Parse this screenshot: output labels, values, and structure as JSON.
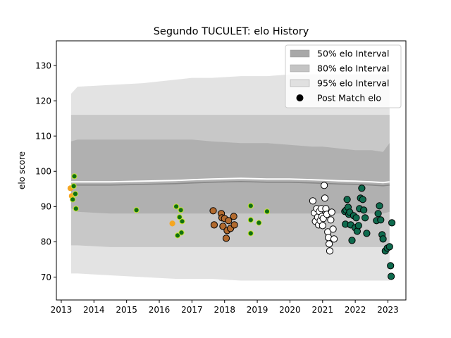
{
  "chart_data": {
    "type": "scatter",
    "title": "Segundo TUCULET: elo History",
    "xlabel": "",
    "ylabel": "elo score",
    "xlim": [
      2012.85,
      2023.55
    ],
    "ylim": [
      63.5,
      137
    ],
    "x_ticks": [
      2013,
      2014,
      2015,
      2016,
      2017,
      2018,
      2019,
      2020,
      2021,
      2022,
      2023
    ],
    "y_ticks": [
      70,
      80,
      90,
      100,
      110,
      120,
      130
    ],
    "grid": false,
    "legend_position": "top-right",
    "legend": [
      {
        "label": "50% elo Interval",
        "kind": "band",
        "color": "#a8a8a8"
      },
      {
        "label": "80% elo Interval",
        "kind": "band",
        "color": "#c4c4c4"
      },
      {
        "label": "95% elo Interval",
        "kind": "band",
        "color": "#e0e0e0"
      },
      {
        "label": "Post Match elo",
        "kind": "marker",
        "color": "#000000"
      }
    ],
    "bands": {
      "x": [
        2013.3,
        2013.5,
        2014.5,
        2015.5,
        2016.5,
        2017.0,
        2017.6,
        2018.5,
        2019.3,
        2020.0,
        2020.7,
        2021.0,
        2021.5,
        2022.0,
        2022.5,
        2022.85,
        2023.05
      ],
      "p95_upper": [
        122,
        124,
        124.5,
        125,
        126,
        126.5,
        126.5,
        127,
        127,
        127.5,
        127.5,
        127.5,
        127.5,
        127.5,
        127.5,
        127.5,
        127.5
      ],
      "p95_lower": [
        71,
        71,
        70.5,
        70,
        69.5,
        69.5,
        69.5,
        69,
        69,
        69,
        69,
        69,
        69,
        69,
        69,
        69,
        69
      ],
      "p80_upper": [
        116,
        116,
        116,
        116,
        116,
        116,
        116,
        116,
        116,
        116,
        116,
        116,
        116,
        116,
        116,
        116,
        116
      ],
      "p80_lower": [
        79,
        79,
        78.5,
        78.5,
        78.5,
        78.5,
        78.5,
        78.5,
        78.5,
        78.5,
        78.5,
        78.5,
        78.5,
        78.5,
        78.5,
        78.5,
        79
      ],
      "p50_upper": [
        108.5,
        109,
        109,
        109,
        109,
        109,
        108.5,
        108,
        108,
        107.5,
        107,
        107,
        106.5,
        106,
        106,
        105.5,
        108
      ],
      "p50_lower": [
        89.5,
        88.5,
        88,
        88,
        88,
        88,
        88,
        88,
        88,
        88,
        88,
        88,
        88,
        88,
        88,
        88,
        88.5
      ],
      "median": [
        97,
        97,
        97,
        97.2,
        97.4,
        97.6,
        97.8,
        98,
        97.8,
        97.8,
        97.6,
        97.5,
        97.3,
        97.2,
        97,
        96.8,
        97
      ]
    },
    "points": [
      {
        "x": 2013.28,
        "y": 95.2,
        "c": "#f5a623"
      },
      {
        "x": 2013.32,
        "y": 93.0,
        "c": "#f5a623"
      },
      {
        "x": 2013.35,
        "y": 92.0,
        "c": "#107010"
      },
      {
        "x": 2013.38,
        "y": 95.8,
        "c": "#107010"
      },
      {
        "x": 2013.4,
        "y": 98.6,
        "c": "#107010"
      },
      {
        "x": 2013.43,
        "y": 93.6,
        "c": "#107010"
      },
      {
        "x": 2013.45,
        "y": 89.4,
        "c": "#107010"
      },
      {
        "x": 2015.3,
        "y": 89.0,
        "c": "#107010"
      },
      {
        "x": 2016.4,
        "y": 85.2,
        "c": "#f5a623"
      },
      {
        "x": 2016.52,
        "y": 90.0,
        "c": "#107010"
      },
      {
        "x": 2016.56,
        "y": 81.8,
        "c": "#107010"
      },
      {
        "x": 2016.62,
        "y": 87.0,
        "c": "#107010"
      },
      {
        "x": 2016.66,
        "y": 89.0,
        "c": "#107010"
      },
      {
        "x": 2016.68,
        "y": 82.6,
        "c": "#107010"
      },
      {
        "x": 2016.7,
        "y": 85.8,
        "c": "#107010"
      },
      {
        "x": 2017.65,
        "y": 88.8,
        "c": "#b26a2e"
      },
      {
        "x": 2017.68,
        "y": 84.8,
        "c": "#b26a2e"
      },
      {
        "x": 2017.9,
        "y": 88.0,
        "c": "#b26a2e"
      },
      {
        "x": 2017.92,
        "y": 86.8,
        "c": "#b26a2e"
      },
      {
        "x": 2017.95,
        "y": 84.4,
        "c": "#b26a2e"
      },
      {
        "x": 2018.0,
        "y": 86.6,
        "c": "#b26a2e"
      },
      {
        "x": 2018.05,
        "y": 81.0,
        "c": "#b26a2e"
      },
      {
        "x": 2018.08,
        "y": 83.2,
        "c": "#b26a2e"
      },
      {
        "x": 2018.12,
        "y": 86.0,
        "c": "#b26a2e"
      },
      {
        "x": 2018.18,
        "y": 83.8,
        "c": "#b26a2e"
      },
      {
        "x": 2018.28,
        "y": 87.2,
        "c": "#b26a2e"
      },
      {
        "x": 2018.3,
        "y": 84.8,
        "c": "#b26a2e"
      },
      {
        "x": 2018.8,
        "y": 90.2,
        "c": "#107010"
      },
      {
        "x": 2018.8,
        "y": 86.2,
        "c": "#107010"
      },
      {
        "x": 2018.8,
        "y": 82.4,
        "c": "#107010"
      },
      {
        "x": 2019.05,
        "y": 85.4,
        "c": "#107010"
      },
      {
        "x": 2019.3,
        "y": 88.6,
        "c": "#107010"
      },
      {
        "x": 2020.7,
        "y": 91.6,
        "c": "#ffffff"
      },
      {
        "x": 2020.75,
        "y": 88.2,
        "c": "#ffffff"
      },
      {
        "x": 2020.78,
        "y": 85.8,
        "c": "#ffffff"
      },
      {
        "x": 2020.82,
        "y": 89.4,
        "c": "#ffffff"
      },
      {
        "x": 2020.85,
        "y": 87.0,
        "c": "#ffffff"
      },
      {
        "x": 2020.88,
        "y": 84.8,
        "c": "#ffffff"
      },
      {
        "x": 2020.9,
        "y": 88.6,
        "c": "#ffffff"
      },
      {
        "x": 2020.93,
        "y": 86.0,
        "c": "#ffffff"
      },
      {
        "x": 2020.96,
        "y": 89.4,
        "c": "#ffffff"
      },
      {
        "x": 2020.98,
        "y": 87.2,
        "c": "#ffffff"
      },
      {
        "x": 2021.0,
        "y": 84.6,
        "c": "#ffffff"
      },
      {
        "x": 2021.02,
        "y": 86.6,
        "c": "#ffffff"
      },
      {
        "x": 2021.05,
        "y": 96.0,
        "c": "#ffffff"
      },
      {
        "x": 2021.07,
        "y": 92.4,
        "c": "#ffffff"
      },
      {
        "x": 2021.1,
        "y": 89.4,
        "c": "#ffffff"
      },
      {
        "x": 2021.13,
        "y": 87.8,
        "c": "#ffffff"
      },
      {
        "x": 2021.16,
        "y": 82.8,
        "c": "#ffffff"
      },
      {
        "x": 2021.18,
        "y": 81.2,
        "c": "#ffffff"
      },
      {
        "x": 2021.2,
        "y": 79.4,
        "c": "#ffffff"
      },
      {
        "x": 2021.22,
        "y": 77.4,
        "c": "#ffffff"
      },
      {
        "x": 2021.25,
        "y": 86.2,
        "c": "#ffffff"
      },
      {
        "x": 2021.28,
        "y": 88.4,
        "c": "#ffffff"
      },
      {
        "x": 2021.32,
        "y": 83.6,
        "c": "#ffffff"
      },
      {
        "x": 2021.35,
        "y": 80.8,
        "c": "#ffffff"
      },
      {
        "x": 2021.68,
        "y": 88.6,
        "c": "#0e6b4e"
      },
      {
        "x": 2021.7,
        "y": 85.0,
        "c": "#0e6b4e"
      },
      {
        "x": 2021.72,
        "y": 89.0,
        "c": "#0e6b4e"
      },
      {
        "x": 2021.75,
        "y": 92.0,
        "c": "#0e6b4e"
      },
      {
        "x": 2021.78,
        "y": 89.8,
        "c": "#0e6b4e"
      },
      {
        "x": 2021.8,
        "y": 87.8,
        "c": "#0e6b4e"
      },
      {
        "x": 2021.83,
        "y": 88.4,
        "c": "#0e6b4e"
      },
      {
        "x": 2021.86,
        "y": 84.8,
        "c": "#0e6b4e"
      },
      {
        "x": 2021.9,
        "y": 80.4,
        "c": "#0e6b4e"
      },
      {
        "x": 2021.95,
        "y": 87.4,
        "c": "#0e6b4e"
      },
      {
        "x": 2022.0,
        "y": 84.0,
        "c": "#0e6b4e"
      },
      {
        "x": 2022.03,
        "y": 86.8,
        "c": "#0e6b4e"
      },
      {
        "x": 2022.06,
        "y": 83.0,
        "c": "#0e6b4e"
      },
      {
        "x": 2022.1,
        "y": 84.6,
        "c": "#0e6b4e"
      },
      {
        "x": 2022.13,
        "y": 89.4,
        "c": "#0e6b4e"
      },
      {
        "x": 2022.16,
        "y": 92.4,
        "c": "#0e6b4e"
      },
      {
        "x": 2022.2,
        "y": 95.2,
        "c": "#0e6b4e"
      },
      {
        "x": 2022.23,
        "y": 92.0,
        "c": "#0e6b4e"
      },
      {
        "x": 2022.26,
        "y": 89.0,
        "c": "#0e6b4e"
      },
      {
        "x": 2022.3,
        "y": 86.8,
        "c": "#0e6b4e"
      },
      {
        "x": 2022.35,
        "y": 82.4,
        "c": "#0e6b4e"
      },
      {
        "x": 2022.65,
        "y": 86.0,
        "c": "#0e6b4e"
      },
      {
        "x": 2022.7,
        "y": 88.0,
        "c": "#0e6b4e"
      },
      {
        "x": 2022.74,
        "y": 90.2,
        "c": "#0e6b4e"
      },
      {
        "x": 2022.78,
        "y": 86.2,
        "c": "#0e6b4e"
      },
      {
        "x": 2022.82,
        "y": 82.0,
        "c": "#0e6b4e"
      },
      {
        "x": 2022.85,
        "y": 80.8,
        "c": "#0e6b4e"
      },
      {
        "x": 2022.92,
        "y": 77.4,
        "c": "#0e6b4e"
      },
      {
        "x": 2022.98,
        "y": 78.2,
        "c": "#0e6b4e"
      },
      {
        "x": 2023.05,
        "y": 78.6,
        "c": "#0e6b4e"
      },
      {
        "x": 2023.08,
        "y": 73.2,
        "c": "#0e6b4e"
      },
      {
        "x": 2023.1,
        "y": 70.2,
        "c": "#0e6b4e"
      },
      {
        "x": 2023.12,
        "y": 85.4,
        "c": "#0e6b4e"
      }
    ]
  }
}
